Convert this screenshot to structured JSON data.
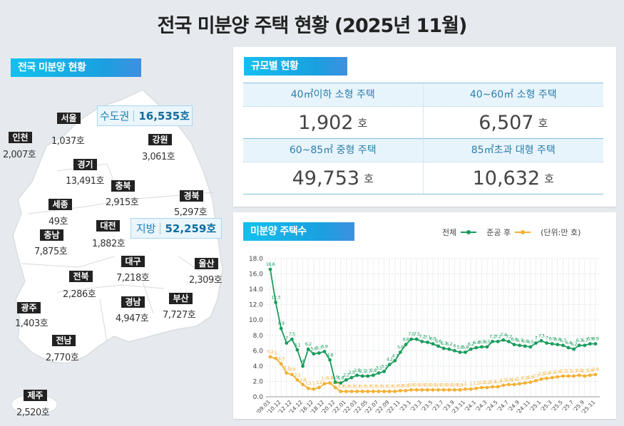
{
  "title": "전국 미분양 주택 현황 (2025년 11월)",
  "map": {
    "header": "전국 미분양 현황",
    "capital": {
      "label": "수도권",
      "value": "16,535호"
    },
    "local": {
      "label": "지방",
      "value": "52,259호"
    },
    "regions": [
      {
        "name": "서울",
        "value": "1,037호"
      },
      {
        "name": "인천",
        "value": "2,007호"
      },
      {
        "name": "강원",
        "value": "3,061호"
      },
      {
        "name": "경기",
        "value": "13,491호"
      },
      {
        "name": "충북",
        "value": "2,915호"
      },
      {
        "name": "경북",
        "value": "5,297호"
      },
      {
        "name": "세종",
        "value": "49호"
      },
      {
        "name": "대전",
        "value": "1,882호"
      },
      {
        "name": "충남",
        "value": "7,875호"
      },
      {
        "name": "대구",
        "value": "7,218호"
      },
      {
        "name": "울산",
        "value": "2,309호"
      },
      {
        "name": "전북",
        "value": "2,286호"
      },
      {
        "name": "부산",
        "value": "7,727호"
      },
      {
        "name": "경남",
        "value": "4,947호"
      },
      {
        "name": "광주",
        "value": "1,403호"
      },
      {
        "name": "전남",
        "value": "2,770호"
      },
      {
        "name": "제주",
        "value": "2,520호"
      }
    ]
  },
  "size": {
    "header": "규모별 현황",
    "unit": "호",
    "items": [
      {
        "label": "40㎡이하 소형 주택",
        "value": "1,902"
      },
      {
        "label": "40~60㎡ 소형 주택",
        "value": "6,507"
      },
      {
        "label": "60~85㎡ 중형 주택",
        "value": "49,753"
      },
      {
        "label": "85㎡초과 대형 주택",
        "value": "10,632"
      }
    ]
  },
  "chart_data": {
    "type": "line",
    "title": "미분양 주택수",
    "unit_note": "(단위:만 호)",
    "ylim": [
      0,
      18
    ],
    "yticks": [
      "0.0",
      "2.0",
      "4.0",
      "6.0",
      "8.0",
      "10.0",
      "12.0",
      "14.0",
      "16.0",
      "18.0"
    ],
    "grid": true,
    "legend": "top-right",
    "x": [
      "'09.03",
      "'09.12",
      "'10.12",
      "'11.12",
      "'12.12",
      "'13.12",
      "'14.12",
      "'15.12",
      "'16.12",
      "'17.12",
      "'18.12",
      "'19.12",
      "'20.12",
      "'21.12",
      "'22.01",
      "'22.02",
      "'22.03",
      "'22.04",
      "'22.05",
      "'22.06",
      "'22.07",
      "'22.08",
      "'22.09",
      "'22.10",
      "'22.11",
      "'22.12",
      "'23.1",
      "'23.2",
      "'23.3",
      "'23.4",
      "'23.5",
      "'23.6",
      "'23.7",
      "'23.8",
      "'23.9",
      "'23.10",
      "'23.11",
      "'23.12",
      "'24.1",
      "'24.2",
      "'24.3",
      "'24.4",
      "'24.5",
      "'24.6",
      "'24.7",
      "'24.8",
      "'24.9",
      "'24.10",
      "'24.11",
      "'24.12",
      "'25.1",
      "'25.2",
      "'25.3",
      "'25.4",
      "'25.5",
      "'25.6",
      "'25.7",
      "'25.8",
      "'25.9",
      "'25.10",
      "'25.11"
    ],
    "xtick_labels": [
      "'09.03",
      "'10.12",
      "'12.12",
      "'14.12",
      "'16.12",
      "'18.12",
      "'20.12",
      "'22.01",
      "'22.03",
      "'22.05",
      "'22.07",
      "'22.09",
      "'22.11",
      "'23.1",
      "'23.3",
      "'23.5",
      "'23.7",
      "'23.9",
      "'23.11",
      "'24.1",
      "'24.3",
      "'24.5",
      "'24.7",
      "'24.9",
      "'24.11",
      "'25.1",
      "'25.3",
      "'25.5",
      "'25.7",
      "'25.9",
      "'25.11"
    ],
    "series": [
      {
        "name": "전체",
        "color": "#1a9c5c",
        "values": [
          16.6,
          12.3,
          8.9,
          7.0,
          7.5,
          6.1,
          4.0,
          6.2,
          5.6,
          5.7,
          5.9,
          4.8,
          1.9,
          1.8,
          2.2,
          2.5,
          2.8,
          2.7,
          2.7,
          2.8,
          3.1,
          3.3,
          4.2,
          4.7,
          5.8,
          6.8,
          7.5,
          7.5,
          7.2,
          7.1,
          6.9,
          6.6,
          6.3,
          6.2,
          6.0,
          5.8,
          5.8,
          6.2,
          6.4,
          6.5,
          6.5,
          7.2,
          7.2,
          7.4,
          7.2,
          6.8,
          6.7,
          6.6,
          6.5,
          7.0,
          7.3,
          7.0,
          6.9,
          6.8,
          6.7,
          6.4,
          6.2,
          6.7,
          6.7,
          6.9,
          6.9
        ]
      },
      {
        "name": "준공 후",
        "color": "#f2b035",
        "values": [
          5.2,
          5.0,
          4.3,
          3.1,
          2.9,
          2.2,
          1.6,
          1.1,
          1.0,
          1.2,
          1.7,
          1.8,
          1.2,
          0.7,
          0.7,
          0.7,
          0.7,
          0.7,
          0.7,
          0.7,
          0.7,
          0.7,
          0.7,
          0.7,
          0.8,
          0.8,
          0.9,
          0.9,
          0.9,
          0.9,
          0.9,
          0.9,
          0.9,
          0.9,
          0.9,
          0.9,
          1.0,
          1.0,
          1.1,
          1.2,
          1.2,
          1.3,
          1.3,
          1.5,
          1.6,
          1.6,
          1.7,
          1.8,
          1.9,
          2.1,
          2.3,
          2.4,
          2.5,
          2.6,
          2.7,
          2.7,
          2.7,
          2.8,
          2.7,
          2.8,
          2.9
        ]
      }
    ]
  }
}
